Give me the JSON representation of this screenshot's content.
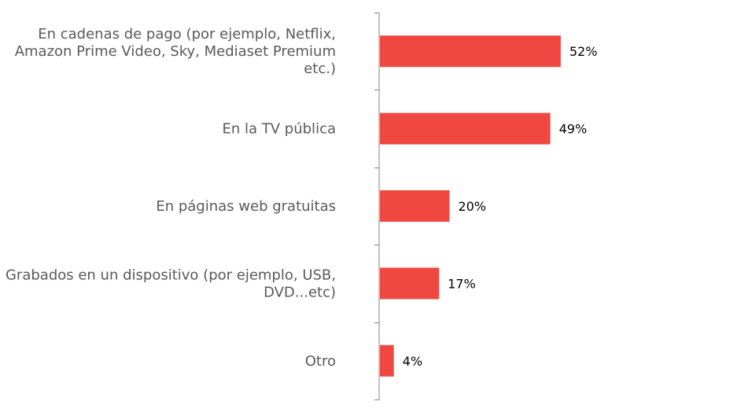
{
  "chart_data": {
    "type": "bar",
    "orientation": "horizontal",
    "categories": [
      [
        "En cadenas de pago (por ejemplo, Netflix,",
        "Amazon Prime Video, Sky, Mediaset Premium",
        "etc.)"
      ],
      [
        "En la TV pública"
      ],
      [
        "En páginas web gratuitas"
      ],
      [
        "Grabados en un dispositivo (por ejemplo, USB,",
        "DVD...etc)"
      ],
      [
        "Otro"
      ]
    ],
    "values": [
      52,
      49,
      20,
      17,
      4
    ],
    "value_labels": [
      "52%",
      "49%",
      "20%",
      "17%",
      "4%"
    ],
    "value_unit": "%",
    "xlim": [
      0,
      100
    ],
    "grid": false,
    "legend": "none",
    "colors": {
      "bar": "#F04740",
      "axis": "#808080",
      "category_text": "#595959",
      "value_text": "#000000"
    }
  }
}
